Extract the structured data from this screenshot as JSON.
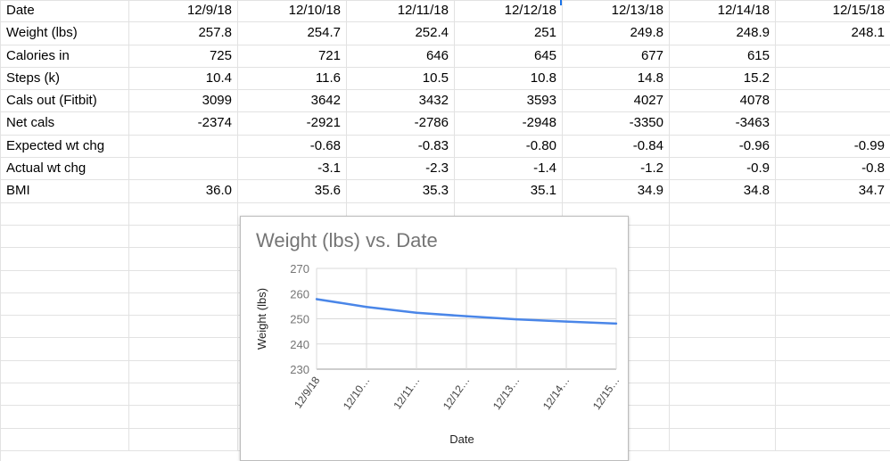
{
  "sheet": {
    "rows": [
      {
        "label": "Date",
        "cells": [
          "12/9/18",
          "12/10/18",
          "12/11/18",
          "12/12/18",
          "12/13/18",
          "12/14/18",
          "12/15/18"
        ]
      },
      {
        "label": "Weight (lbs)",
        "cells": [
          "257.8",
          "254.7",
          "252.4",
          "251",
          "249.8",
          "248.9",
          "248.1"
        ]
      },
      {
        "label": "Calories in",
        "cells": [
          "725",
          "721",
          "646",
          "645",
          "677",
          "615",
          ""
        ]
      },
      {
        "label": "Steps (k)",
        "cells": [
          "10.4",
          "11.6",
          "10.5",
          "10.8",
          "14.8",
          "15.2",
          ""
        ]
      },
      {
        "label": "Cals out (Fitbit)",
        "cells": [
          "3099",
          "3642",
          "3432",
          "3593",
          "4027",
          "4078",
          ""
        ]
      },
      {
        "label": "Net cals",
        "cells": [
          "-2374",
          "-2921",
          "-2786",
          "-2948",
          "-3350",
          "-3463",
          ""
        ]
      },
      {
        "label": "Expected wt chg",
        "cells": [
          "",
          "-0.68",
          "-0.83",
          "-0.80",
          "-0.84",
          "-0.96",
          "-0.99"
        ]
      },
      {
        "label": "Actual wt chg",
        "cells": [
          "",
          "-3.1",
          "-2.3",
          "-1.4",
          "-1.2",
          "-0.9",
          "-0.8"
        ]
      },
      {
        "label": "BMI",
        "cells": [
          "36.0",
          "35.6",
          "35.3",
          "35.1",
          "34.9",
          "34.8",
          "34.7"
        ]
      }
    ],
    "empty_rows": 11,
    "grid_color": "#e2e2e2",
    "selection_color": "#1a73e8"
  },
  "chart_data": {
    "type": "line",
    "title": "Weight (lbs) vs. Date",
    "xlabel": "Date",
    "ylabel": "Weight (lbs)",
    "categories": [
      "12/9/18",
      "12/10/18",
      "12/11/18",
      "12/12/18",
      "12/13/18",
      "12/14/18",
      "12/15/18"
    ],
    "category_labels": [
      "12/9/18",
      "12/10…",
      "12/11…",
      "12/12…",
      "12/13…",
      "12/14…",
      "12/15…"
    ],
    "yticks": [
      230,
      240,
      250,
      260,
      270
    ],
    "ylim": [
      230,
      270
    ],
    "grid": true,
    "series": [
      {
        "values": [
          257.8,
          254.7,
          252.4,
          251,
          249.8,
          248.9,
          248.1
        ],
        "color": "#4a86e8"
      }
    ]
  }
}
